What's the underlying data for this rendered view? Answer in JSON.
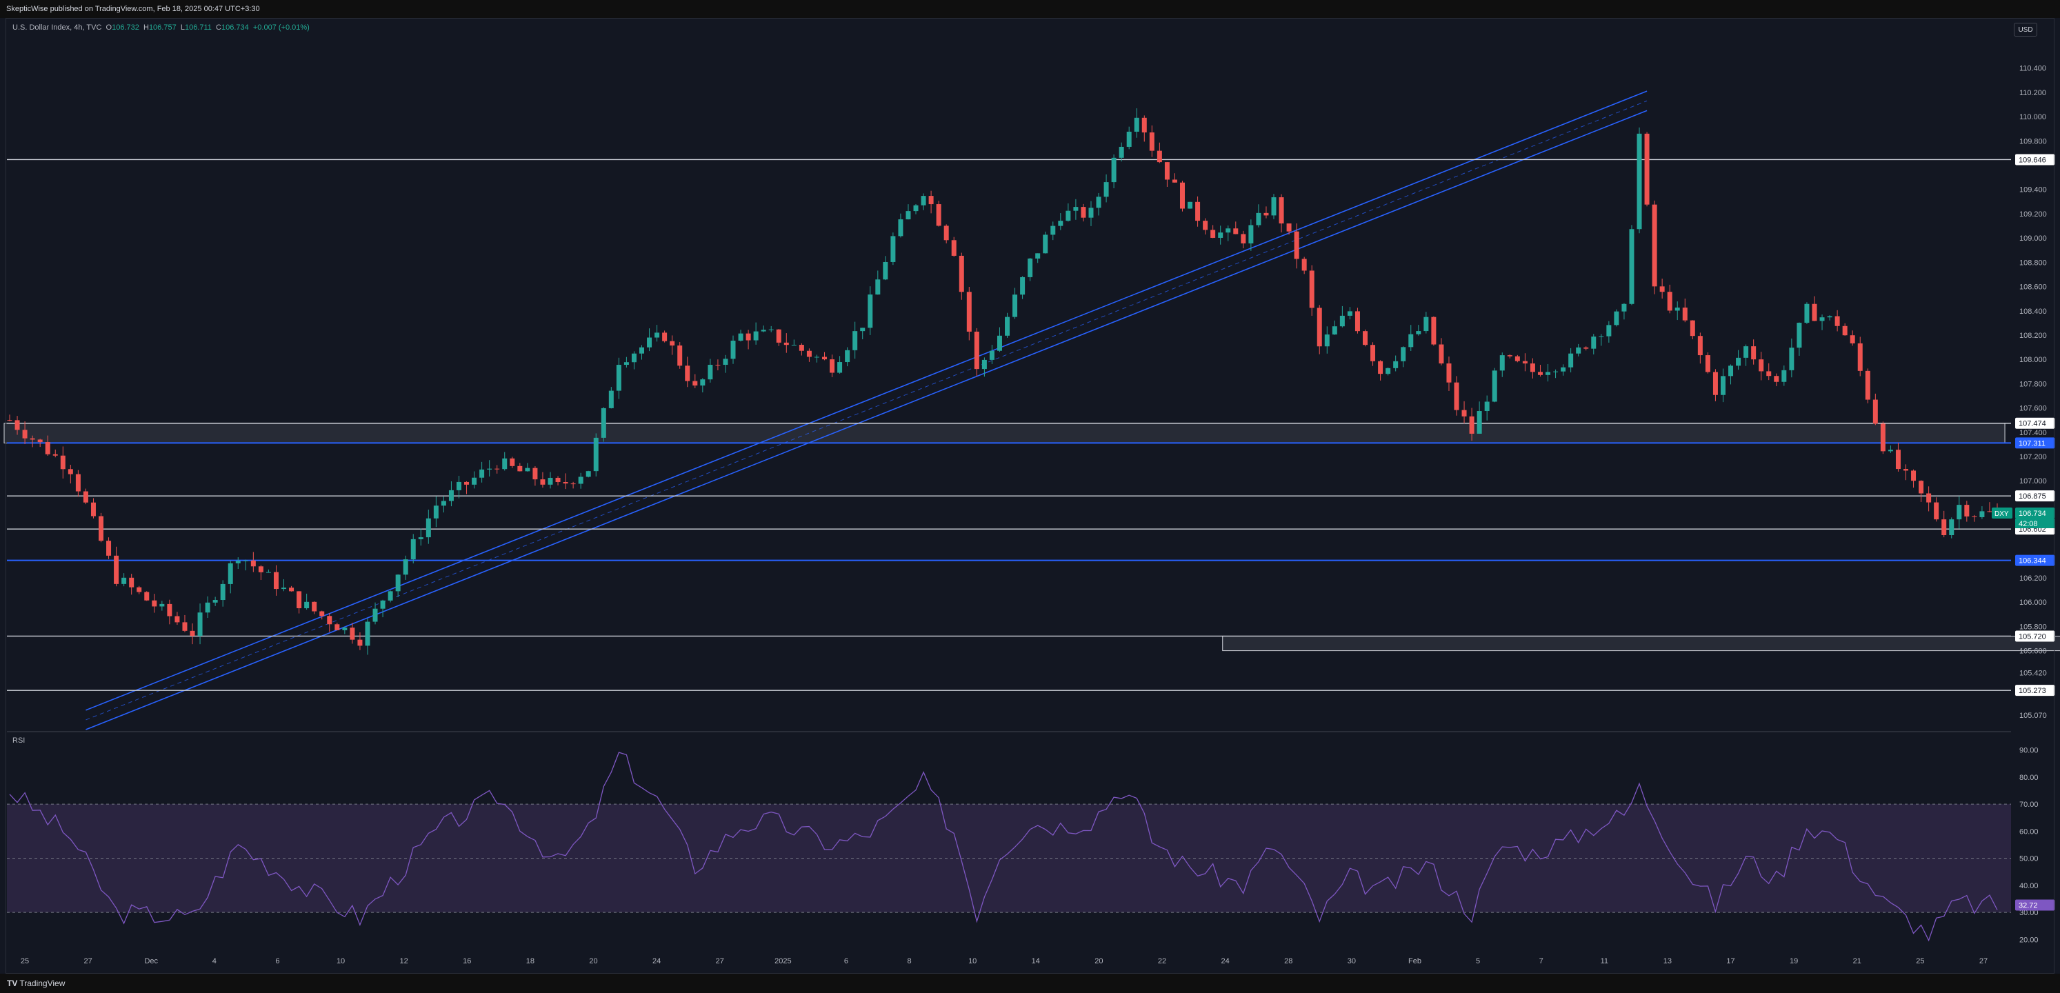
{
  "header": {
    "publish_text": "SkepticWise published on TradingView.com, Feb 18, 2025 00:47 UTC+3:30"
  },
  "legend": {
    "symbol": "U.S. Dollar Index, 4h, TVC",
    "o_label": "O",
    "o_value": "106.732",
    "h_label": "H",
    "h_value": "106.757",
    "l_label": "L",
    "l_value": "106.711",
    "c_label": "C",
    "c_value": "106.734",
    "change": "+0.007 (+0.01%)"
  },
  "currency_button": "USD",
  "rsi_label": "RSI",
  "footer": {
    "logo_mark": "TV",
    "brand": "TradingView"
  },
  "colors": {
    "bg": "#131722",
    "up": "#26a69a",
    "down": "#ef5350",
    "channel": "#2962ff",
    "rsi_line": "#7e57c2",
    "rsi_band": "#2a2440",
    "label_blue": "#2962ff",
    "label_green": "#089981",
    "label_rsi": "#7e57c2"
  },
  "chart_data": [
    {
      "type": "candlestick",
      "title": "U.S. Dollar Index, 4h, TVC",
      "x_tick_labels": [
        "25",
        "27",
        "Dec",
        "4",
        "6",
        "10",
        "12",
        "16",
        "18",
        "20",
        "24",
        "27",
        "2025",
        "6",
        "8",
        "10",
        "14",
        "20",
        "22",
        "24",
        "28",
        "30",
        "Feb",
        "5",
        "7",
        "11",
        "13",
        "17",
        "19",
        "21",
        "25",
        "27"
      ],
      "y_tick_labels": [
        "110.400",
        "110.200",
        "110.000",
        "109.800",
        "109.400",
        "109.200",
        "109.000",
        "108.800",
        "108.600",
        "108.400",
        "108.200",
        "108.000",
        "107.800",
        "107.600",
        "107.400",
        "107.200",
        "107.000",
        "106.200",
        "106.000",
        "105.800",
        "105.600",
        "105.420",
        "105.070"
      ],
      "ylim": [
        104.95,
        110.62
      ],
      "price_path": [
        [
          0,
          107.5
        ],
        [
          8,
          107.1
        ],
        [
          14,
          106.2
        ],
        [
          24,
          105.75
        ],
        [
          30,
          106.4
        ],
        [
          38,
          106.0
        ],
        [
          46,
          105.7
        ],
        [
          56,
          106.8
        ],
        [
          64,
          107.15
        ],
        [
          72,
          106.95
        ],
        [
          76,
          107.1
        ],
        [
          80,
          108.0
        ],
        [
          86,
          108.2
        ],
        [
          90,
          107.75
        ],
        [
          96,
          108.2
        ],
        [
          100,
          108.2
        ],
        [
          108,
          107.95
        ],
        [
          112,
          108.3
        ],
        [
          116,
          109.0
        ],
        [
          120,
          109.4
        ],
        [
          124,
          108.9
        ],
        [
          127,
          107.9
        ],
        [
          130,
          108.2
        ],
        [
          134,
          108.8
        ],
        [
          138,
          109.2
        ],
        [
          142,
          109.2
        ],
        [
          146,
          109.8
        ],
        [
          148,
          110.05
        ],
        [
          150,
          109.75
        ],
        [
          154,
          109.3
        ],
        [
          158,
          109.05
        ],
        [
          162,
          109.0
        ],
        [
          166,
          109.3
        ],
        [
          170,
          108.7
        ],
        [
          172,
          108.1
        ],
        [
          176,
          108.4
        ],
        [
          180,
          107.9
        ],
        [
          186,
          108.3
        ],
        [
          190,
          107.6
        ],
        [
          192,
          107.4
        ],
        [
          196,
          108.0
        ],
        [
          200,
          107.9
        ],
        [
          205,
          108.0
        ],
        [
          208,
          108.2
        ],
        [
          212,
          108.4
        ],
        [
          214,
          109.85
        ],
        [
          216,
          108.6
        ],
        [
          220,
          108.3
        ],
        [
          224,
          107.75
        ],
        [
          228,
          108.1
        ],
        [
          232,
          107.8
        ],
        [
          236,
          108.4
        ],
        [
          240,
          108.3
        ],
        [
          242,
          108.1
        ],
        [
          246,
          107.3
        ],
        [
          248,
          107.1
        ],
        [
          252,
          106.8
        ],
        [
          254,
          106.6
        ],
        [
          256,
          106.8
        ],
        [
          258,
          106.73
        ]
      ],
      "series": [
        {
          "name": "DXY",
          "last": 106.734
        }
      ],
      "horizontal_levels": [
        {
          "value": 109.646,
          "label": "109.646",
          "style": "white"
        },
        {
          "value": 107.474,
          "label": "107.474",
          "style": "white"
        },
        {
          "value": 107.311,
          "label": "107.311",
          "style": "blue"
        },
        {
          "value": 106.875,
          "label": "106.875",
          "style": "white"
        },
        {
          "value": 106.734,
          "label": "106.734",
          "style": "green"
        },
        {
          "value": 106.602,
          "label": "106.602",
          "style": "white"
        },
        {
          "value": 106.344,
          "label": "106.344",
          "style": "blue"
        },
        {
          "value": 105.72,
          "label": "105.720",
          "style": "white"
        },
        {
          "value": 105.273,
          "label": "105.273",
          "style": "white"
        }
      ],
      "price_badge": {
        "symbol": "DXY",
        "value": "106.734",
        "countdown": "42:08"
      },
      "zones": [
        {
          "from_bar": 0,
          "to_bar": 262,
          "low": 107.311,
          "high": 107.474
        },
        {
          "from_bar": 160,
          "to_bar": 290,
          "low": 105.6,
          "high": 105.72
        }
      ],
      "channel": {
        "from": [
          10,
          104.95
        ],
        "to": [
          215,
          110.05
        ],
        "width": 0.16
      }
    },
    {
      "type": "line",
      "title": "RSI",
      "y_tick_labels": [
        "90.00",
        "80.00",
        "70.00",
        "60.00",
        "50.00",
        "40.00",
        "30.00",
        "20.00"
      ],
      "ylim": [
        15,
        95
      ],
      "band": [
        30,
        70
      ],
      "mid": 50,
      "last_label": "32.72",
      "path": [
        [
          0,
          75
        ],
        [
          8,
          58
        ],
        [
          14,
          30
        ],
        [
          24,
          28
        ],
        [
          30,
          55
        ],
        [
          38,
          40
        ],
        [
          46,
          28
        ],
        [
          56,
          60
        ],
        [
          64,
          73
        ],
        [
          72,
          48
        ],
        [
          76,
          60
        ],
        [
          80,
          88
        ],
        [
          86,
          68
        ],
        [
          90,
          47
        ],
        [
          96,
          62
        ],
        [
          100,
          64
        ],
        [
          108,
          55
        ],
        [
          112,
          58
        ],
        [
          116,
          66
        ],
        [
          120,
          78
        ],
        [
          124,
          60
        ],
        [
          127,
          30
        ],
        [
          130,
          52
        ],
        [
          134,
          63
        ],
        [
          138,
          62
        ],
        [
          142,
          64
        ],
        [
          146,
          76
        ],
        [
          148,
          70
        ],
        [
          150,
          57
        ],
        [
          154,
          48
        ],
        [
          158,
          44
        ],
        [
          162,
          40
        ],
        [
          166,
          55
        ],
        [
          170,
          38
        ],
        [
          172,
          28
        ],
        [
          176,
          43
        ],
        [
          180,
          38
        ],
        [
          186,
          48
        ],
        [
          190,
          36
        ],
        [
          192,
          30
        ],
        [
          196,
          55
        ],
        [
          200,
          52
        ],
        [
          205,
          57
        ],
        [
          208,
          62
        ],
        [
          212,
          66
        ],
        [
          214,
          76
        ],
        [
          216,
          66
        ],
        [
          220,
          46
        ],
        [
          224,
          33
        ],
        [
          228,
          50
        ],
        [
          232,
          42
        ],
        [
          236,
          62
        ],
        [
          240,
          58
        ],
        [
          242,
          48
        ],
        [
          246,
          34
        ],
        [
          248,
          30
        ],
        [
          252,
          22
        ],
        [
          254,
          28
        ],
        [
          256,
          34
        ],
        [
          258,
          32.7
        ]
      ]
    }
  ]
}
